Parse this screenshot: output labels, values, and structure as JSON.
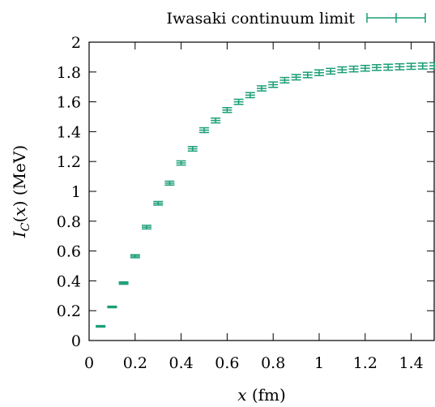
{
  "chart_data": {
    "type": "scatter",
    "xlabel": "x (fm)",
    "ylabel": "I_C(x) (MeV)",
    "xlim": [
      0,
      1.5
    ],
    "ylim": [
      0,
      2
    ],
    "xticks": [
      0,
      0.2,
      0.4,
      0.6,
      0.8,
      1,
      1.2,
      1.4
    ],
    "yticks": [
      0,
      0.2,
      0.4,
      0.6,
      0.8,
      1,
      1.2,
      1.4,
      1.6,
      1.8,
      2
    ],
    "xtick_labels": [
      "0",
      "0.2",
      "0.4",
      "0.6",
      "0.8",
      "1",
      "1.2",
      "1.4"
    ],
    "ytick_labels": [
      "0",
      "0.2",
      "0.4",
      "0.6",
      "0.8",
      "1",
      "1.2",
      "1.4",
      "1.6",
      "1.8",
      "2"
    ],
    "legend_position": "top-right",
    "grid": false,
    "series": [
      {
        "name": "Iwasaki continuum limit",
        "color": "#1a9e77",
        "x": [
          0.05,
          0.1,
          0.15,
          0.2,
          0.25,
          0.3,
          0.35,
          0.4,
          0.45,
          0.5,
          0.55,
          0.6,
          0.65,
          0.7,
          0.75,
          0.8,
          0.85,
          0.9,
          0.95,
          1.0,
          1.05,
          1.1,
          1.15,
          1.2,
          1.25,
          1.3,
          1.35,
          1.4,
          1.45,
          1.5
        ],
        "y": [
          0.095,
          0.225,
          0.385,
          0.565,
          0.76,
          0.92,
          1.055,
          1.19,
          1.285,
          1.41,
          1.475,
          1.545,
          1.6,
          1.645,
          1.69,
          1.715,
          1.745,
          1.765,
          1.78,
          1.795,
          1.805,
          1.815,
          1.82,
          1.825,
          1.83,
          1.832,
          1.835,
          1.838,
          1.84,
          1.842
        ],
        "yerr": [
          0.005,
          0.005,
          0.008,
          0.01,
          0.012,
          0.012,
          0.013,
          0.014,
          0.015,
          0.016,
          0.016,
          0.016,
          0.017,
          0.017,
          0.017,
          0.018,
          0.018,
          0.018,
          0.018,
          0.019,
          0.019,
          0.019,
          0.019,
          0.019,
          0.019,
          0.02,
          0.02,
          0.02,
          0.02,
          0.02
        ]
      }
    ]
  },
  "colors": {
    "series": "#1a9e77",
    "axis": "#000000",
    "background": "#ffffff"
  }
}
